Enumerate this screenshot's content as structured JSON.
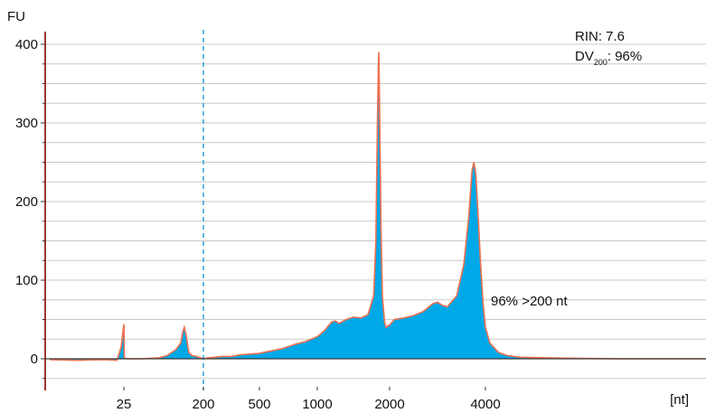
{
  "chart_data": {
    "type": "area",
    "ylabel": "FU",
    "xlabel": "[nt]",
    "ylim": [
      -40,
      410
    ],
    "x_scale": "electropherogram (nonlinear, nt)",
    "y_ticks": [
      0,
      100,
      200,
      300,
      400
    ],
    "x_ticks": [
      25,
      200,
      500,
      1000,
      2000,
      4000
    ],
    "threshold_marker": {
      "x": 200,
      "style": "dashed",
      "color": "#29a3d6"
    },
    "annotations": {
      "rin": "RIN: 7.6",
      "dv_prefix": "DV",
      "dv_subscript": "200",
      "dv_suffix": ": 96%",
      "fraction": "96% >200 nt"
    },
    "colors": {
      "fill": "#00a8e8",
      "trace": "#f07050",
      "grid": "#c8c8c8",
      "axis": "#8b0000"
    },
    "series": [
      {
        "values": [
          [
            14,
            -1
          ],
          [
            18,
            -2
          ],
          [
            22,
            -1
          ],
          [
            24,
            -2
          ],
          [
            24.6,
            15
          ],
          [
            25,
            44
          ],
          [
            25.4,
            38
          ],
          [
            26,
            2
          ],
          [
            30,
            0
          ],
          [
            60,
            0
          ],
          [
            100,
            1
          ],
          [
            120,
            4
          ],
          [
            140,
            12
          ],
          [
            150,
            20
          ],
          [
            155,
            35
          ],
          [
            158,
            40
          ],
          [
            162,
            30
          ],
          [
            168,
            8
          ],
          [
            175,
            4
          ],
          [
            185,
            3
          ],
          [
            195,
            1
          ],
          [
            200,
            0
          ],
          [
            220,
            1
          ],
          [
            260,
            2
          ],
          [
            300,
            3
          ],
          [
            350,
            3
          ],
          [
            400,
            5
          ],
          [
            450,
            6
          ],
          [
            500,
            7
          ],
          [
            600,
            10
          ],
          [
            700,
            13
          ],
          [
            800,
            18
          ],
          [
            900,
            22
          ],
          [
            1000,
            28
          ],
          [
            1100,
            36
          ],
          [
            1200,
            47
          ],
          [
            1250,
            48
          ],
          [
            1300,
            45
          ],
          [
            1400,
            50
          ],
          [
            1500,
            53
          ],
          [
            1600,
            52
          ],
          [
            1700,
            56
          ],
          [
            1780,
            80
          ],
          [
            1810,
            150
          ],
          [
            1830,
            290
          ],
          [
            1845,
            375
          ],
          [
            1850,
            390
          ],
          [
            1860,
            330
          ],
          [
            1880,
            170
          ],
          [
            1900,
            80
          ],
          [
            1930,
            47
          ],
          [
            1950,
            40
          ],
          [
            2000,
            43
          ],
          [
            2100,
            50
          ],
          [
            2300,
            52
          ],
          [
            2500,
            55
          ],
          [
            2700,
            60
          ],
          [
            2900,
            70
          ],
          [
            3000,
            72
          ],
          [
            3100,
            68
          ],
          [
            3200,
            66
          ],
          [
            3400,
            80
          ],
          [
            3550,
            120
          ],
          [
            3650,
            180
          ],
          [
            3720,
            240
          ],
          [
            3760,
            250
          ],
          [
            3800,
            235
          ],
          [
            3850,
            180
          ],
          [
            3900,
            120
          ],
          [
            3950,
            70
          ],
          [
            4000,
            40
          ],
          [
            4100,
            20
          ],
          [
            4300,
            8
          ],
          [
            4500,
            4
          ],
          [
            4800,
            2
          ],
          [
            5500,
            1
          ],
          [
            7000,
            0
          ],
          [
            9000,
            0
          ]
        ]
      }
    ]
  }
}
